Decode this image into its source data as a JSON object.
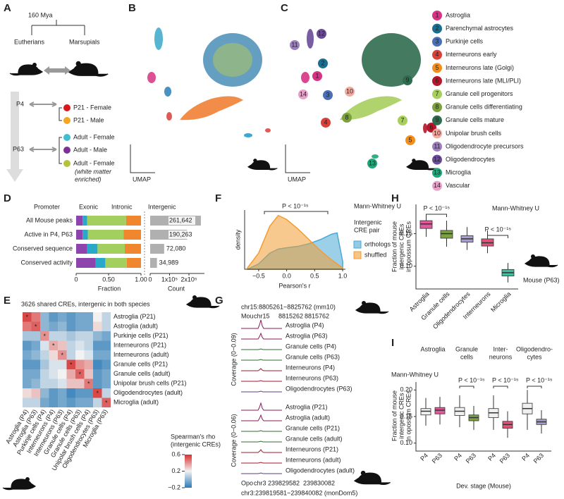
{
  "a": {
    "label": "A",
    "time": "160 Mya",
    "left": "Eutherians",
    "right": "Marsupials",
    "stages": [
      "P4",
      "P63"
    ],
    "samples": [
      {
        "name": "P21 - Female",
        "color": "#d7191c"
      },
      {
        "name": "P21 - Male",
        "color": "#f5a623"
      },
      {
        "name": "Adult - Female",
        "color": "#3fbfcf"
      },
      {
        "name": "Adult - Male",
        "color": "#7b3294"
      },
      {
        "name": "Adult - Female",
        "color": "#b5c33a"
      }
    ],
    "note_lines": [
      "(white matter",
      "enriched)"
    ]
  },
  "b": {
    "label": "B",
    "axis_label": "UMAP"
  },
  "c": {
    "label": "C",
    "axis_label": "UMAP",
    "cell_types": [
      {
        "id": 1,
        "name": "Astroglia",
        "color": "#d63384"
      },
      {
        "id": 2,
        "name": "Parenchymal astrocytes",
        "color": "#1a6e8e"
      },
      {
        "id": 3,
        "name": "Purkinje cells",
        "color": "#4a6fb5"
      },
      {
        "id": 4,
        "name": "Interneurons early",
        "color": "#d9403a"
      },
      {
        "id": 5,
        "name": "Interneurons late (Golgi)",
        "color": "#f28e1c"
      },
      {
        "id": 6,
        "name": "Interneurons late (MLI/PLI)",
        "color": "#b5172b"
      },
      {
        "id": 7,
        "name": "Granule cell progenitors",
        "color": "#a8cf5e"
      },
      {
        "id": 8,
        "name": "Granule cells differentiating",
        "color": "#7ba23f"
      },
      {
        "id": 9,
        "name": "Granule cells mature",
        "color": "#2f6b4f"
      },
      {
        "id": 10,
        "name": "Unipolar brush cells",
        "color": "#f4a9a0"
      },
      {
        "id": 11,
        "name": "Oligodendrocyte precursors",
        "color": "#9b7fc0"
      },
      {
        "id": 12,
        "name": "Oligodendrocytes",
        "color": "#6b4c9a"
      },
      {
        "id": 13,
        "name": "Microglia",
        "color": "#1fa67a"
      },
      {
        "id": 14,
        "name": "Vascular",
        "color": "#e7a0c8"
      }
    ]
  },
  "d": {
    "label": "D",
    "type": "bar",
    "categories": [
      "All Mouse peaks",
      "Active in P4, P63",
      "Conserved sequence",
      "Conserved activity"
    ],
    "series": [
      {
        "name": "Promoter",
        "color": "#8e44ad",
        "values": [
          0.1,
          0.1,
          0.17,
          0.3
        ]
      },
      {
        "name": "Exonic",
        "color": "#2aa7c9",
        "values": [
          0.07,
          0.08,
          0.16,
          0.15
        ]
      },
      {
        "name": "Intronic",
        "color": "#a3cf5e",
        "values": [
          0.6,
          0.55,
          0.42,
          0.33
        ]
      },
      {
        "name": "Intergenic",
        "color": "#f0872f",
        "values": [
          0.23,
          0.27,
          0.25,
          0.22
        ]
      }
    ],
    "xlim": [
      0,
      1
    ],
    "xticks": [
      0,
      {
        "value": 0.5,
        "label": "0.50"
      },
      {
        "value": 1,
        "label": "1.00"
      }
    ],
    "xlabel": "Fraction",
    "counts": {
      "values": [
        261642,
        190263,
        72080,
        34989
      ],
      "value_labels": [
        "261,642",
        "190,263",
        "72,080",
        "34,989"
      ],
      "color": "#b0b0b0",
      "xlim": [
        0,
        280000
      ],
      "xticks": [
        0,
        {
          "value": 100000,
          "label": "1x10⁵"
        },
        {
          "value": 200000,
          "label": "2x10⁵"
        }
      ],
      "xlabel": "Count"
    }
  },
  "e": {
    "label": "E",
    "type": "heatmap",
    "title": "3626 shared CREs, intergenic in both species",
    "rows": [
      "Astroglia (P21)",
      "Astroglia (adult)",
      "Purkinje cells (P21)",
      "Interneurons (P21)",
      "Interneurons (adult)",
      "Granule cells (P21)",
      "Granule cells (adult)",
      "Unipolar brush cells (P21)",
      "Oligodendrocytes (adult)",
      "Microglia (adult)"
    ],
    "columns": [
      "Astroglia (P4)",
      "Astroglia (P63)",
      "Purkinje cells (P4)",
      "Interneurons (P4)",
      "Interneurons (P63)",
      "Granule cells (P4)",
      "Granule cells (P63)",
      "Unipolar brush cells (P4)",
      "Oligodendrocytes (P63)",
      "Microglia (P63)"
    ],
    "values": [
      [
        0.55,
        0.45,
        0.0,
        -0.1,
        -0.05,
        -0.1,
        -0.05,
        -0.05,
        0.2,
        0.1
      ],
      [
        0.45,
        0.5,
        0.0,
        -0.05,
        0.0,
        -0.1,
        -0.05,
        -0.05,
        0.25,
        0.1
      ],
      [
        0.05,
        0.05,
        0.4,
        0.1,
        0.1,
        0.05,
        0.1,
        0.1,
        0.0,
        -0.05
      ],
      [
        -0.1,
        -0.05,
        0.15,
        0.35,
        0.3,
        0.1,
        0.15,
        0.1,
        -0.1,
        -0.1
      ],
      [
        -0.05,
        0.0,
        0.1,
        0.25,
        0.4,
        0.1,
        0.2,
        0.15,
        -0.05,
        -0.05
      ],
      [
        -0.1,
        -0.1,
        0.05,
        0.15,
        0.15,
        0.55,
        0.4,
        0.35,
        -0.15,
        -0.1
      ],
      [
        -0.05,
        -0.05,
        0.1,
        0.15,
        0.2,
        0.35,
        0.5,
        0.3,
        -0.1,
        -0.05
      ],
      [
        -0.05,
        0.0,
        0.1,
        0.1,
        0.15,
        0.3,
        0.3,
        0.45,
        -0.1,
        -0.05
      ],
      [
        0.25,
        0.3,
        0.0,
        -0.1,
        -0.05,
        -0.15,
        -0.1,
        -0.1,
        0.55,
        0.1
      ],
      [
        0.1,
        0.1,
        -0.05,
        -0.1,
        -0.05,
        -0.1,
        -0.05,
        -0.05,
        0.1,
        0.5
      ]
    ],
    "marker": "*",
    "marked_cells": [
      [
        0,
        0
      ],
      [
        1,
        1
      ],
      [
        2,
        2
      ],
      [
        3,
        3
      ],
      [
        4,
        4
      ],
      [
        5,
        5
      ],
      [
        6,
        6
      ],
      [
        7,
        7
      ],
      [
        8,
        8
      ],
      [
        9,
        9
      ]
    ],
    "colorbar_lines": [
      "Spearman's rho",
      "(intergenic CREs)"
    ],
    "color_lim": [
      -0.2,
      0.6
    ],
    "colors": [
      "#2c7bb6",
      "#f2f2f2",
      "#d7302f"
    ],
    "colorbar_ticks": [
      0.6,
      0.2,
      {
        "value": -0.2,
        "label": "−0.2"
      }
    ]
  },
  "f": {
    "label": "F",
    "type": "area",
    "ylabel": "density",
    "xlabel": "Pearson's r",
    "x": [
      -0.7,
      -0.5,
      -0.3,
      -0.15,
      0,
      0.2,
      0.4,
      0.6,
      0.8,
      0.9,
      1.0
    ],
    "series": [
      {
        "name": "orthologs",
        "color": "#4aa9d6",
        "values": [
          0.0,
          0.2,
          0.6,
          0.75,
          0.8,
          0.85,
          0.95,
          1.1,
          1.3,
          1.35,
          0.3
        ]
      },
      {
        "name": "shuffled",
        "color": "#f39c32",
        "values": [
          0.05,
          0.6,
          1.6,
          2.0,
          1.85,
          1.5,
          1.1,
          0.7,
          0.35,
          0.2,
          0.05
        ]
      }
    ],
    "xlim": [
      -0.75,
      1.05
    ],
    "ylim": [
      0,
      2.2
    ],
    "xticks": [
      {
        "value": -0.5,
        "label": "−0.5"
      },
      {
        "value": 0,
        "label": "0.0"
      },
      {
        "value": 0.5,
        "label": "0.5"
      },
      {
        "value": 1,
        "label": "1.0"
      }
    ],
    "legend_title_lines": [
      "Intergenic",
      "CRE pair"
    ],
    "annotation": "P < 10⁻¹⁵",
    "test": "Mann-Whitney U"
  },
  "g": {
    "label": "G",
    "mouse_region": "chr15:8805261−8825762 (mm10)",
    "mouse_coords": [
      "Mou",
      "chr15",
      "8815262",
      "8815762"
    ],
    "mouse_coverage": "Coverage (0−0.09)",
    "opossum_coverage": "Coverage (0−0.06)",
    "mouse_tracks": [
      {
        "name": "Astroglia (P4)",
        "color": "#8b1a5a"
      },
      {
        "name": "Astroglia (P63)",
        "color": "#8b1a5a"
      },
      {
        "name": "Granule cells (P4)",
        "color": "#2f6b2f"
      },
      {
        "name": "Granule cells (P63)",
        "color": "#2f6b2f"
      },
      {
        "name": "Interneurons (P4)",
        "color": "#a31b2b"
      },
      {
        "name": "Interneurons (P63)",
        "color": "#a31b2b"
      },
      {
        "name": "Oligodendrocytes (P63)",
        "color": "#5b3f8a"
      }
    ],
    "opossum_tracks": [
      {
        "name": "Astroglia (P21)",
        "color": "#8b1a5a"
      },
      {
        "name": "Astroglia (adult)",
        "color": "#8b1a5a"
      },
      {
        "name": "Granule cells (P21)",
        "color": "#2f6b2f"
      },
      {
        "name": "Granule cells (adult)",
        "color": "#2f6b2f"
      },
      {
        "name": "Interneurons (P21)",
        "color": "#a31b2b"
      },
      {
        "name": "Interneurons (adult)",
        "color": "#a31b2b"
      },
      {
        "name": "Oligodendrocytes (adult)",
        "color": "#5b3f8a"
      }
    ],
    "opossum_coords": [
      "Opo",
      "chr3",
      "239829582",
      "239830082"
    ],
    "opossum_region": "chr3:239819581−239840082 (monDom5)"
  },
  "h": {
    "label": "H",
    "type": "box",
    "ylabel_lines": [
      "Fraction of mouse",
      "intergenic CREs",
      "in opossum CREs"
    ],
    "ylim": [
      0.065,
      0.195
    ],
    "yticks": [
      {
        "value": 0.1,
        "label": "0.10"
      },
      {
        "value": 0.15,
        "label": "0.15"
      }
    ],
    "boxes": [
      {
        "name": "Astroglia",
        "color": "#e05a9b",
        "low": 0.145,
        "q1": 0.158,
        "median": 0.165,
        "q3": 0.17,
        "high": 0.18
      },
      {
        "name": "Granule cells",
        "color": "#7ba23f",
        "low": 0.13,
        "q1": 0.143,
        "median": 0.15,
        "q3": 0.155,
        "high": 0.17
      },
      {
        "name": "Oligodendrocytes",
        "color": "#a89fd0",
        "low": 0.125,
        "q1": 0.137,
        "median": 0.142,
        "q3": 0.147,
        "high": 0.16
      },
      {
        "name": "Interneurons",
        "color": "#e0527a",
        "low": 0.12,
        "q1": 0.131,
        "median": 0.136,
        "q3": 0.142,
        "high": 0.155
      },
      {
        "name": "Microglia",
        "color": "#3fbf9f",
        "low": 0.075,
        "q1": 0.085,
        "median": 0.09,
        "q3": 0.095,
        "high": 0.105
      }
    ],
    "annotations": [
      "P < 10⁻¹⁵",
      "P < 10⁻¹⁵"
    ],
    "test": "Mann-Whitney U",
    "species": "Mouse (P63)"
  },
  "i": {
    "label": "I",
    "type": "box",
    "test": "Mann-Whitney U",
    "xlabel": "Dev. stage (Mouse)",
    "ylabel_lines": [
      "Fraction of mouse",
      "intergenic CREs",
      "in opossum CREs"
    ],
    "ylim": [
      0.085,
      0.215
    ],
    "yticks": [
      {
        "value": 0.1,
        "label": "0.10"
      },
      {
        "value": 0.15,
        "label": "0.15"
      },
      {
        "value": 0.2,
        "label": "0.20"
      }
    ],
    "stages": [
      "P4",
      "P63"
    ],
    "groups": [
      {
        "header_lines": [
          "Astroglia"
        ],
        "color": "#e05a9b",
        "boxes": [
          {
            "low": 0.133,
            "q1": 0.153,
            "median": 0.16,
            "q3": 0.165,
            "high": 0.185
          },
          {
            "low": 0.135,
            "q1": 0.155,
            "median": 0.162,
            "q3": 0.167,
            "high": 0.187
          }
        ]
      },
      {
        "header_lines": [
          "Granule",
          "cells"
        ],
        "color": "#7ba23f",
        "annotation": "P < 10⁻¹⁵",
        "boxes": [
          {
            "low": 0.13,
            "q1": 0.152,
            "median": 0.16,
            "q3": 0.167,
            "high": 0.19
          },
          {
            "low": 0.125,
            "q1": 0.142,
            "median": 0.148,
            "q3": 0.153,
            "high": 0.17
          }
        ]
      },
      {
        "header_lines": [
          "Inter-",
          "neurons"
        ],
        "color": "#e0527a",
        "annotation": "P < 10⁻¹⁵",
        "boxes": [
          {
            "low": 0.125,
            "q1": 0.148,
            "median": 0.157,
            "q3": 0.165,
            "high": 0.19
          },
          {
            "low": 0.11,
            "q1": 0.128,
            "median": 0.135,
            "q3": 0.141,
            "high": 0.16
          }
        ]
      },
      {
        "header_lines": [
          "Oligodendro-",
          "cytes"
        ],
        "color": "#a89fd0",
        "annotation": "P < 10⁻¹⁵",
        "boxes": [
          {
            "low": 0.125,
            "q1": 0.155,
            "median": 0.165,
            "q3": 0.175,
            "high": 0.2
          },
          {
            "low": 0.118,
            "q1": 0.135,
            "median": 0.14,
            "q3": 0.145,
            "high": 0.162
          }
        ]
      }
    ]
  }
}
